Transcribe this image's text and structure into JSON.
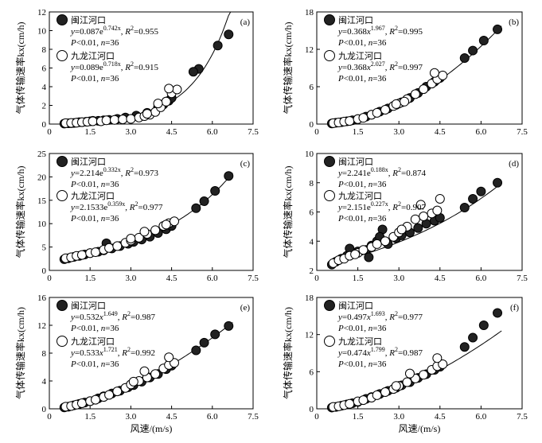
{
  "figure": {
    "xlabel_shared": "风速/(m/s)"
  },
  "colors": {
    "series1_fill": "#222222",
    "series2_fill": "#ffffff",
    "stroke": "#000000"
  },
  "chart_data": [
    {
      "type": "scatter",
      "panel_label": "(a)",
      "ylabel": "气体传输速率kx(cm/h)",
      "xlabel": "",
      "xlim": [
        0,
        7.5
      ],
      "ylim": [
        0,
        12
      ],
      "xticks": [
        "0",
        "1.5",
        "3.0",
        "4.5",
        "6.0",
        "7.5"
      ],
      "yticks": [
        "0",
        "2",
        "4",
        "6",
        "8",
        "10",
        "12"
      ],
      "fit": {
        "kind": "exp",
        "a": 0.087,
        "b": 0.742
      },
      "legend": [
        {
          "name": "闽江河口",
          "line1": "y=0.087e0.742x, R2=0.955",
          "line2": "P<0.01, n=36"
        },
        {
          "name": "九龙江河口",
          "line1": "y=0.089e0.718x, R2=0.915",
          "line2": "P<0.01, n=36"
        }
      ],
      "series": [
        {
          "name": "闽江河口",
          "marker": "filled",
          "x": [
            0.55,
            0.7,
            0.8,
            0.9,
            1.0,
            1.1,
            1.2,
            1.35,
            1.5,
            1.6,
            1.8,
            2.0,
            2.2,
            2.5,
            2.8,
            3.2,
            3.6,
            4.0,
            4.2,
            4.4,
            4.5,
            5.5,
            6.2,
            6.6,
            5.3,
            4.3
          ],
          "y": [
            0.05,
            0.08,
            0.1,
            0.12,
            0.15,
            0.2,
            0.2,
            0.25,
            0.3,
            0.35,
            0.35,
            0.4,
            0.45,
            0.55,
            0.7,
            0.9,
            1.2,
            1.8,
            2.1,
            2.5,
            2.8,
            5.9,
            8.4,
            9.6,
            5.6,
            2.4
          ]
        },
        {
          "name": "九龙江河口",
          "marker": "open",
          "x": [
            0.6,
            0.8,
            1.0,
            1.2,
            1.4,
            1.6,
            1.9,
            2.1,
            2.4,
            2.7,
            3.0,
            3.3,
            3.5,
            3.7,
            3.9,
            4.1,
            4.3,
            4.5,
            4.7,
            4.4,
            4.0,
            3.6
          ],
          "y": [
            0.1,
            0.12,
            0.15,
            0.2,
            0.25,
            0.3,
            0.3,
            0.4,
            0.45,
            0.5,
            0.55,
            0.7,
            0.85,
            1.0,
            1.3,
            1.8,
            2.4,
            3.3,
            3.7,
            3.8,
            2.2,
            1.1
          ]
        }
      ]
    },
    {
      "type": "scatter",
      "panel_label": "(b)",
      "ylabel": "气体传输速率kx(cm/h)",
      "xlabel": "",
      "xlim": [
        0,
        7.5
      ],
      "ylim": [
        0,
        18
      ],
      "xticks": [
        "0",
        "1.5",
        "3.0",
        "4.5",
        "6.0",
        "7.5"
      ],
      "yticks": [
        "0",
        "6",
        "12",
        "18"
      ],
      "fit": {
        "kind": "pow",
        "a": 0.368,
        "b": 1.967
      },
      "legend": [
        {
          "name": "闽江河口",
          "line1": "y=0.368x1.967, R2=0.995",
          "line2": "P<0.01, n=36"
        },
        {
          "name": "九龙江河口",
          "line1": "y=0.368x2.027, R2=0.997",
          "line2": "P<0.01, n=36"
        }
      ],
      "series": [
        {
          "name": "闽江河口",
          "marker": "filled",
          "x": [
            0.55,
            0.7,
            0.9,
            1.1,
            1.3,
            1.5,
            1.8,
            2.0,
            2.3,
            2.6,
            2.9,
            3.1,
            3.4,
            3.7,
            4.0,
            4.3,
            4.5,
            5.4,
            5.7,
            6.1,
            6.6
          ],
          "y": [
            0.1,
            0.2,
            0.3,
            0.45,
            0.6,
            0.8,
            1.2,
            1.5,
            2.0,
            2.5,
            3.1,
            3.5,
            4.2,
            5.0,
            6.0,
            6.8,
            7.4,
            10.6,
            11.8,
            13.4,
            15.2
          ]
        },
        {
          "name": "九龙江河口",
          "marker": "open",
          "x": [
            0.6,
            0.8,
            1.0,
            1.2,
            1.5,
            1.7,
            2.0,
            2.2,
            2.5,
            2.8,
            3.0,
            3.3,
            3.6,
            3.9,
            4.2,
            4.4,
            4.6,
            4.3,
            3.2,
            2.9
          ],
          "y": [
            0.15,
            0.25,
            0.4,
            0.5,
            0.8,
            1.0,
            1.5,
            1.8,
            2.3,
            2.9,
            3.3,
            4.0,
            4.8,
            5.6,
            6.5,
            7.2,
            7.8,
            8.2,
            3.6,
            3.2
          ]
        }
      ]
    },
    {
      "type": "scatter",
      "panel_label": "(c)",
      "ylabel": "气体传输速率kx(cm/h)",
      "xlabel": "",
      "xlim": [
        0,
        7.5
      ],
      "ylim": [
        0,
        25
      ],
      "xticks": [
        "0",
        "1.5",
        "3.0",
        "4.5",
        "6.0",
        "7.5"
      ],
      "yticks": [
        "0",
        "5",
        "10",
        "15",
        "20",
        "25"
      ],
      "fit": {
        "kind": "exp",
        "a": 2.214,
        "b": 0.332
      },
      "legend": [
        {
          "name": "闽江河口",
          "line1": "y=2.214e0.332x, R2=0.973",
          "line2": "P<0.01, n=36"
        },
        {
          "name": "九龙江河口",
          "line1": "y=2.1533e0.359x, R2=0.977",
          "line2": "P<0.01, n=36"
        }
      ],
      "series": [
        {
          "name": "闽江河口",
          "marker": "filled",
          "x": [
            0.55,
            0.7,
            0.9,
            1.1,
            1.3,
            1.5,
            1.8,
            2.0,
            2.3,
            2.6,
            2.9,
            3.1,
            3.4,
            3.7,
            4.0,
            4.3,
            4.5,
            5.4,
            5.7,
            6.1,
            6.6,
            2.1
          ],
          "y": [
            2.4,
            2.6,
            2.9,
            3.1,
            3.4,
            3.7,
            4.0,
            4.3,
            4.7,
            5.2,
            5.7,
            6.1,
            6.6,
            7.2,
            8.0,
            8.8,
            9.5,
            13.3,
            14.8,
            17.0,
            20.2,
            5.8
          ]
        },
        {
          "name": "九龙江河口",
          "marker": "open",
          "x": [
            0.6,
            0.8,
            1.0,
            1.2,
            1.5,
            1.7,
            2.0,
            2.2,
            2.5,
            2.8,
            3.0,
            3.3,
            3.6,
            3.9,
            4.2,
            4.4,
            4.6,
            4.3,
            3.0,
            3.5
          ],
          "y": [
            2.6,
            2.8,
            3.1,
            3.3,
            3.7,
            3.9,
            4.4,
            4.8,
            5.2,
            5.9,
            6.4,
            7.0,
            7.8,
            8.6,
            9.5,
            10.1,
            10.5,
            9.8,
            6.8,
            8.3
          ]
        }
      ]
    },
    {
      "type": "scatter",
      "panel_label": "(d)",
      "ylabel": "气体传输速率kx(cm/h)",
      "xlabel": "",
      "xlim": [
        0,
        7.5
      ],
      "ylim": [
        2,
        10
      ],
      "xticks": [
        "0",
        "1.5",
        "3.0",
        "4.5",
        "6.0",
        "7.5"
      ],
      "yticks": [
        "2",
        "4",
        "6",
        "8",
        "10"
      ],
      "fit": {
        "kind": "exp",
        "a": 2.241,
        "b": 0.188
      },
      "legend": [
        {
          "name": "闽江河口",
          "line1": "y=2.241e0.188x, R2=0.874",
          "line2": "P<0.01, n=36"
        },
        {
          "name": "九龙江河口",
          "line1": "y=2.151e0.227x, R2=0.907",
          "line2": "P<0.01, n=36"
        }
      ],
      "series": [
        {
          "name": "闽江河口",
          "marker": "filled",
          "x": [
            0.55,
            0.7,
            0.9,
            1.1,
            1.3,
            1.5,
            1.8,
            2.0,
            2.2,
            2.4,
            2.6,
            2.9,
            3.1,
            3.4,
            3.7,
            4.0,
            4.3,
            4.5,
            5.4,
            5.7,
            6.0,
            6.6,
            1.9,
            2.3,
            1.2
          ],
          "y": [
            2.4,
            2.6,
            2.8,
            3.0,
            3.1,
            3.3,
            3.4,
            3.7,
            4.0,
            4.8,
            3.8,
            4.2,
            4.4,
            4.6,
            4.9,
            5.2,
            5.4,
            5.6,
            6.3,
            6.9,
            7.4,
            8.0,
            2.9,
            4.3,
            3.5
          ]
        },
        {
          "name": "九龙江河口",
          "marker": "open",
          "x": [
            0.6,
            0.8,
            1.0,
            1.2,
            1.5,
            1.7,
            2.0,
            2.2,
            2.5,
            2.8,
            3.0,
            3.3,
            3.6,
            3.9,
            4.2,
            4.4,
            4.5,
            3.8,
            3.1,
            1.4
          ],
          "y": [
            2.5,
            2.7,
            2.8,
            3.0,
            3.2,
            3.4,
            3.6,
            3.8,
            4.0,
            4.3,
            4.6,
            5.0,
            5.5,
            5.7,
            5.9,
            6.1,
            6.9,
            6.5,
            4.8,
            3.1
          ]
        }
      ]
    },
    {
      "type": "scatter",
      "panel_label": "(e)",
      "ylabel": "气体传输速率kx(cm/h)",
      "xlabel": "风速/(m/s)",
      "xlim": [
        0,
        7.5
      ],
      "ylim": [
        0,
        16
      ],
      "xticks": [
        "0",
        "1.5",
        "3.0",
        "4.5",
        "6.0",
        "7.5"
      ],
      "yticks": [
        "0",
        "4",
        "8",
        "12",
        "16"
      ],
      "fit": {
        "kind": "pow",
        "a": 0.532,
        "b": 1.649
      },
      "legend": [
        {
          "name": "闽江河口",
          "line1": "y=0.532x1.649, R2=0.987",
          "line2": "P<0.01, n=36"
        },
        {
          "name": "九龙江河口",
          "line1": "y=0.533x1.721, R2=0.992",
          "line2": "P<0.01, n=36"
        }
      ],
      "series": [
        {
          "name": "闽江河口",
          "marker": "filled",
          "x": [
            0.55,
            0.7,
            0.9,
            1.1,
            1.3,
            1.5,
            1.8,
            2.0,
            2.3,
            2.6,
            2.9,
            3.1,
            3.4,
            3.7,
            4.0,
            4.3,
            4.5,
            5.4,
            5.7,
            6.1,
            6.6
          ],
          "y": [
            0.2,
            0.3,
            0.5,
            0.7,
            0.9,
            1.1,
            1.5,
            1.8,
            2.2,
            2.6,
            3.1,
            3.4,
            3.9,
            4.5,
            5.0,
            5.7,
            6.2,
            8.4,
            9.5,
            10.7,
            11.9
          ]
        },
        {
          "name": "九龙江河口",
          "marker": "open",
          "x": [
            0.6,
            0.8,
            1.0,
            1.2,
            1.5,
            1.7,
            2.0,
            2.2,
            2.5,
            2.8,
            3.0,
            3.3,
            3.6,
            3.9,
            4.2,
            4.4,
            4.6,
            4.4,
            3.5,
            3.1
          ],
          "y": [
            0.3,
            0.4,
            0.6,
            0.8,
            1.1,
            1.3,
            1.7,
            2.0,
            2.5,
            3.0,
            3.5,
            4.0,
            4.5,
            5.0,
            5.8,
            6.3,
            6.6,
            7.4,
            5.4,
            3.9
          ]
        }
      ]
    },
    {
      "type": "scatter",
      "panel_label": "(f)",
      "ylabel": "气体传输速率kx(cm/h)",
      "xlabel": "风速/(m/s)",
      "xlim": [
        0,
        7.5
      ],
      "ylim": [
        0,
        18
      ],
      "xticks": [
        "0",
        "1.5",
        "3.0",
        "4.5",
        "6.0",
        "7.5"
      ],
      "yticks": [
        "0",
        "6",
        "12",
        "18"
      ],
      "fit": {
        "kind": "pow",
        "a": 0.497,
        "b": 1.693
      },
      "legend": [
        {
          "name": "闽江河口",
          "line1": "y=0.497x1.693, R2=0.977",
          "line2": "P<0.01, n=36"
        },
        {
          "name": "九龙江河口",
          "line1": "y=0.474x1.799, R2=0.987",
          "line2": "P<0.01, n=36"
        }
      ],
      "series": [
        {
          "name": "闽江河口",
          "marker": "filled",
          "x": [
            0.55,
            0.7,
            0.9,
            1.1,
            1.3,
            1.5,
            1.8,
            2.0,
            2.3,
            2.6,
            2.9,
            3.1,
            3.4,
            3.7,
            4.0,
            4.3,
            4.5,
            5.4,
            5.7,
            6.1,
            6.6
          ],
          "y": [
            0.2,
            0.3,
            0.5,
            0.7,
            0.9,
            1.1,
            1.6,
            1.9,
            2.4,
            2.9,
            3.4,
            3.8,
            4.3,
            5.0,
            5.6,
            6.3,
            6.8,
            10.0,
            11.5,
            13.5,
            15.5
          ]
        },
        {
          "name": "九龙江河口",
          "marker": "open",
          "x": [
            0.6,
            0.8,
            1.0,
            1.2,
            1.5,
            1.7,
            2.0,
            2.2,
            2.5,
            2.8,
            3.0,
            3.3,
            3.6,
            3.9,
            4.2,
            4.4,
            4.6,
            4.4,
            3.4,
            2.9
          ],
          "y": [
            0.3,
            0.4,
            0.6,
            0.8,
            1.2,
            1.4,
            1.8,
            2.2,
            2.7,
            3.2,
            3.7,
            4.3,
            4.9,
            5.5,
            6.3,
            6.9,
            7.2,
            8.2,
            5.7,
            3.7
          ]
        }
      ]
    }
  ]
}
